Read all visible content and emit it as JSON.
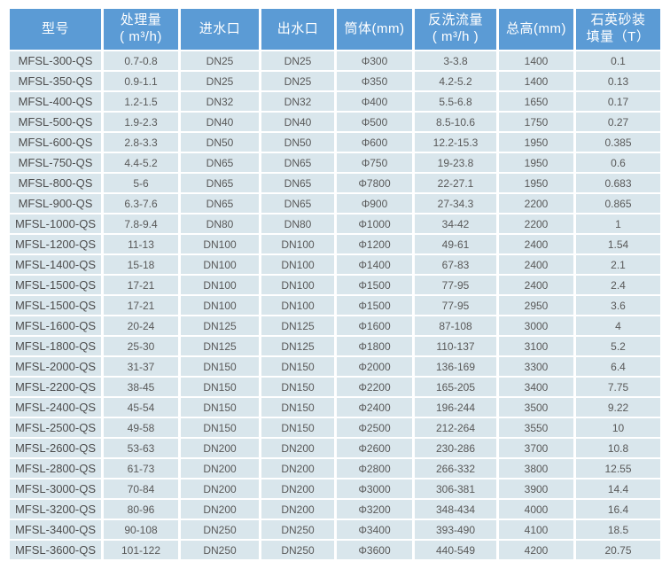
{
  "colors": {
    "header_bg": "#5b9bd5",
    "header_text": "#ffffff",
    "row_bg": "#d9e6ec",
    "cell_text": "#595959",
    "gap_bg": "#ffffff"
  },
  "table": {
    "headers": [
      "型号",
      "处理量\n( m³/h)",
      "进水口",
      "出水口",
      "筒体(mm)",
      "反洗流量\n( m³/h )",
      "总高(mm)",
      "石英砂装\n填量（T）"
    ],
    "rows": [
      [
        "MFSL-300-QS",
        "0.7-0.8",
        "DN25",
        "DN25",
        "Φ300",
        "3-3.8",
        "1400",
        "0.1"
      ],
      [
        "MFSL-350-QS",
        "0.9-1.1",
        "DN25",
        "DN25",
        "Φ350",
        "4.2-5.2",
        "1400",
        "0.13"
      ],
      [
        "MFSL-400-QS",
        "1.2-1.5",
        "DN32",
        "DN32",
        "Φ400",
        "5.5-6.8",
        "1650",
        "0.17"
      ],
      [
        "MFSL-500-QS",
        "1.9-2.3",
        "DN40",
        "DN40",
        "Φ500",
        "8.5-10.6",
        "1750",
        "0.27"
      ],
      [
        "MFSL-600-QS",
        "2.8-3.3",
        "DN50",
        "DN50",
        "Φ600",
        "12.2-15.3",
        "1950",
        "0.385"
      ],
      [
        "MFSL-750-QS",
        "4.4-5.2",
        "DN65",
        "DN65",
        "Φ750",
        "19-23.8",
        "1950",
        "0.6"
      ],
      [
        "MFSL-800-QS",
        "5-6",
        "DN65",
        "DN65",
        "Φ7800",
        "22-27.1",
        "1950",
        "0.683"
      ],
      [
        "MFSL-900-QS",
        "6.3-7.6",
        "DN65",
        "DN65",
        "Φ900",
        "27-34.3",
        "2200",
        "0.865"
      ],
      [
        "MFSL-1000-QS",
        "7.8-9.4",
        "DN80",
        "DN80",
        "Φ1000",
        "34-42",
        "2200",
        "1"
      ],
      [
        "MFSL-1200-QS",
        "11-13",
        "DN100",
        "DN100",
        "Φ1200",
        "49-61",
        "2400",
        "1.54"
      ],
      [
        "MFSL-1400-QS",
        "15-18",
        "DN100",
        "DN100",
        "Φ1400",
        "67-83",
        "2400",
        "2.1"
      ],
      [
        "MFSL-1500-QS",
        "17-21",
        "DN100",
        "DN100",
        "Φ1500",
        "77-95",
        "2400",
        "2.4"
      ],
      [
        "MFSL-1500-QS",
        "17-21",
        "DN100",
        "DN100",
        "Φ1500",
        "77-95",
        "2950",
        "3.6"
      ],
      [
        "MFSL-1600-QS",
        "20-24",
        "DN125",
        "DN125",
        "Φ1600",
        "87-108",
        "3000",
        "4"
      ],
      [
        "MFSL-1800-QS",
        "25-30",
        "DN125",
        "DN125",
        "Φ1800",
        "110-137",
        "3100",
        "5.2"
      ],
      [
        "MFSL-2000-QS",
        "31-37",
        "DN150",
        "DN150",
        "Φ2000",
        "136-169",
        "3300",
        "6.4"
      ],
      [
        "MFSL-2200-QS",
        "38-45",
        "DN150",
        "DN150",
        "Φ2200",
        "165-205",
        "3400",
        "7.75"
      ],
      [
        "MFSL-2400-QS",
        "45-54",
        "DN150",
        "DN150",
        "Φ2400",
        "196-244",
        "3500",
        "9.22"
      ],
      [
        "MFSL-2500-QS",
        "49-58",
        "DN150",
        "DN150",
        "Φ2500",
        "212-264",
        "3550",
        "10"
      ],
      [
        "MFSL-2600-QS",
        "53-63",
        "DN200",
        "DN200",
        "Φ2600",
        "230-286",
        "3700",
        "10.8"
      ],
      [
        "MFSL-2800-QS",
        "61-73",
        "DN200",
        "DN200",
        "Φ2800",
        "266-332",
        "3800",
        "12.55"
      ],
      [
        "MFSL-3000-QS",
        "70-84",
        "DN200",
        "DN200",
        "Φ3000",
        "306-381",
        "3900",
        "14.4"
      ],
      [
        "MFSL-3200-QS",
        "80-96",
        "DN200",
        "DN200",
        "Φ3200",
        "348-434",
        "4000",
        "16.4"
      ],
      [
        "MFSL-3400-QS",
        "90-108",
        "DN250",
        "DN250",
        "Φ3400",
        "393-490",
        "4100",
        "18.5"
      ],
      [
        "MFSL-3600-QS",
        "101-122",
        "DN250",
        "DN250",
        "Φ3600",
        "440-549",
        "4200",
        "20.75"
      ]
    ]
  }
}
